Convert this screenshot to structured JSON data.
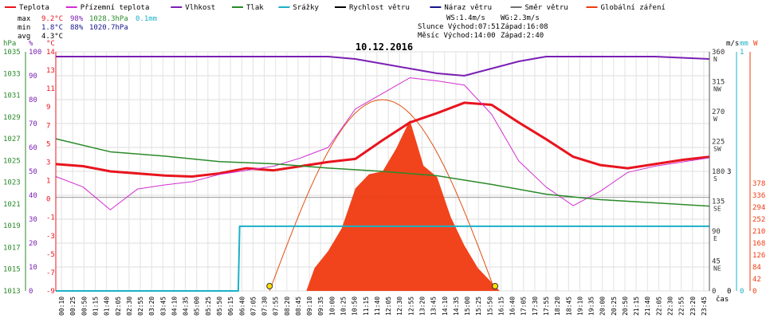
{
  "legend": [
    {
      "label": "Teplota",
      "color": "#e8141e"
    },
    {
      "label": "Přízemní teplota",
      "color": "#d22ed2"
    },
    {
      "label": "Vlhkost",
      "color": "#7a1fb4"
    },
    {
      "label": "Tlak",
      "color": "#2a8a2a"
    },
    {
      "label": "Srážky",
      "color": "#1bb0c8"
    },
    {
      "label": "Rychlost větru",
      "color": "#000000"
    },
    {
      "label": "Náraz větru",
      "color": "#14148c"
    },
    {
      "label": "Směr větru",
      "color": "#707070"
    },
    {
      "label": "Globální záření",
      "color": "#f03a10"
    }
  ],
  "stats": {
    "max": {
      "label": "max",
      "temp": "9.2°C",
      "hum": "98%",
      "press": "1028.3hPa",
      "rain": "0.1mm"
    },
    "min": {
      "label": "min",
      "temp": "1.8°C",
      "hum": "88%",
      "press": "1020.7hPa"
    },
    "avg": {
      "label": "avg",
      "temp": "4.3°C"
    }
  },
  "info": {
    "line1a": "WS:1.4m/s",
    "line1b": "WG:2.3m/s",
    "line2a": "Slunce Východ:07:51",
    "line2b": "Západ:16:08",
    "line3a": "Měsíc  Východ:14:00",
    "line3b": "Západ:2:40"
  },
  "chart_data": {
    "type": "line",
    "title": "10.12.2016",
    "xlabel": "čas",
    "x_ticks": [
      "00:10",
      "00:25",
      "00:50",
      "01:15",
      "01:40",
      "02:05",
      "02:30",
      "02:55",
      "03:20",
      "03:45",
      "04:10",
      "04:35",
      "05:00",
      "05:25",
      "05:50",
      "06:15",
      "06:40",
      "07:05",
      "07:30",
      "07:55",
      "08:20",
      "08:45",
      "09:10",
      "09:35",
      "10:00",
      "10:25",
      "10:50",
      "11:15",
      "11:40",
      "12:05",
      "12:30",
      "12:55",
      "13:20",
      "13:45",
      "14:10",
      "14:35",
      "15:00",
      "15:25",
      "15:50",
      "16:15",
      "16:40",
      "17:05",
      "17:30",
      "17:55",
      "18:20",
      "18:45",
      "19:10",
      "19:35",
      "20:00",
      "20:25",
      "20:50",
      "21:15",
      "21:40",
      "22:05",
      "22:30",
      "22:55",
      "23:20",
      "23:45"
    ],
    "axes_left": {
      "hPa": {
        "unit": "hPa",
        "ticks": [
          "1035",
          "1033",
          "1031",
          "1029",
          "1027",
          "1025",
          "1023",
          "1021",
          "1019",
          "1017",
          "1015",
          "1013"
        ],
        "range": [
          1013,
          1035
        ]
      },
      "pct": {
        "unit": "%",
        "ticks": [
          "100",
          "90",
          "80",
          "70",
          "60",
          "50",
          "40",
          "30",
          "20",
          "10",
          "0"
        ],
        "range": [
          0,
          100
        ]
      },
      "temp": {
        "unit": "°C",
        "ticks": [
          "14",
          "13",
          "11",
          "9",
          "7",
          "5",
          "3",
          "1",
          "0",
          "-1",
          "-3",
          "-5",
          "-7",
          "-9"
        ],
        "range": [
          -9,
          14
        ]
      }
    },
    "axes_right": {
      "dir": {
        "ticks": [
          "360\nN",
          "315\nNW",
          "270\nW",
          "225\nSW",
          "180\nS",
          "135\nSE",
          "90\nE",
          "45\nNE",
          "0"
        ]
      },
      "ms": {
        "unit": "m/s",
        "ticks": [
          "3",
          "0"
        ]
      },
      "mm": {
        "unit": "mm",
        "ticks": [
          "1",
          "0"
        ]
      },
      "W": {
        "unit": "W",
        "ticks": [
          "378",
          "336",
          "294",
          "252",
          "210",
          "168",
          "126",
          "84",
          "42",
          "0"
        ]
      }
    },
    "series": [
      {
        "name": "Teplota",
        "unit": "°C",
        "x": [
          0,
          1,
          2,
          3,
          4,
          5,
          6,
          7,
          8,
          9,
          10,
          11,
          12,
          13,
          14,
          15,
          16,
          17,
          18,
          19,
          20,
          21,
          22,
          23,
          24
        ],
        "y": [
          3.2,
          3.0,
          2.5,
          2.3,
          2.1,
          2.0,
          2.3,
          2.8,
          2.6,
          3.0,
          3.4,
          3.7,
          5.5,
          7.2,
          8.1,
          9.1,
          8.9,
          7.2,
          5.6,
          3.9,
          3.1,
          2.8,
          3.2,
          3.6,
          3.9
        ]
      },
      {
        "name": "Přízemní teplota",
        "unit": "°C",
        "x": [
          0,
          1,
          2,
          3,
          4,
          5,
          6,
          7,
          8,
          9,
          10,
          11,
          12,
          13,
          14,
          15,
          16,
          17,
          18,
          19,
          20,
          21,
          22,
          23,
          24
        ],
        "y": [
          2.0,
          1.0,
          -1.2,
          0.8,
          1.2,
          1.5,
          2.2,
          2.6,
          3.0,
          3.8,
          4.8,
          8.5,
          10.0,
          11.5,
          11.2,
          10.8,
          8.0,
          3.5,
          1.0,
          -0.8,
          0.6,
          2.4,
          3.0,
          3.4,
          3.8
        ]
      },
      {
        "name": "Vlhkost",
        "unit": "%",
        "x": [
          0,
          2,
          4,
          6,
          8,
          10,
          11,
          12,
          13,
          14,
          15,
          16,
          17,
          18,
          20,
          22,
          24
        ],
        "y": [
          98,
          98,
          98,
          98,
          98,
          98,
          97,
          95,
          93,
          91,
          90,
          93,
          96,
          98,
          98,
          98,
          97
        ]
      },
      {
        "name": "Tlak",
        "unit": "hPa",
        "x": [
          0,
          2,
          4,
          6,
          8,
          10,
          12,
          14,
          16,
          18,
          20,
          22,
          24
        ],
        "y": [
          1027.0,
          1025.8,
          1025.4,
          1024.9,
          1024.7,
          1024.3,
          1024.0,
          1023.6,
          1022.8,
          1021.9,
          1021.4,
          1021.1,
          1020.8
        ]
      },
      {
        "name": "Srážky",
        "unit": "mm",
        "x": [
          0,
          6.7,
          6.75,
          24
        ],
        "y": [
          0,
          0,
          0.1,
          0.1
        ]
      },
      {
        "name": "Globální záření",
        "unit": "W",
        "x": [
          9.2,
          9.5,
          10,
          10.5,
          11,
          11.5,
          12,
          12.5,
          13,
          13.5,
          14,
          14.5,
          15,
          15.5,
          16,
          16.3
        ],
        "y": [
          0,
          40,
          70,
          110,
          180,
          205,
          210,
          250,
          300,
          220,
          200,
          130,
          80,
          40,
          15,
          0
        ]
      }
    ]
  }
}
